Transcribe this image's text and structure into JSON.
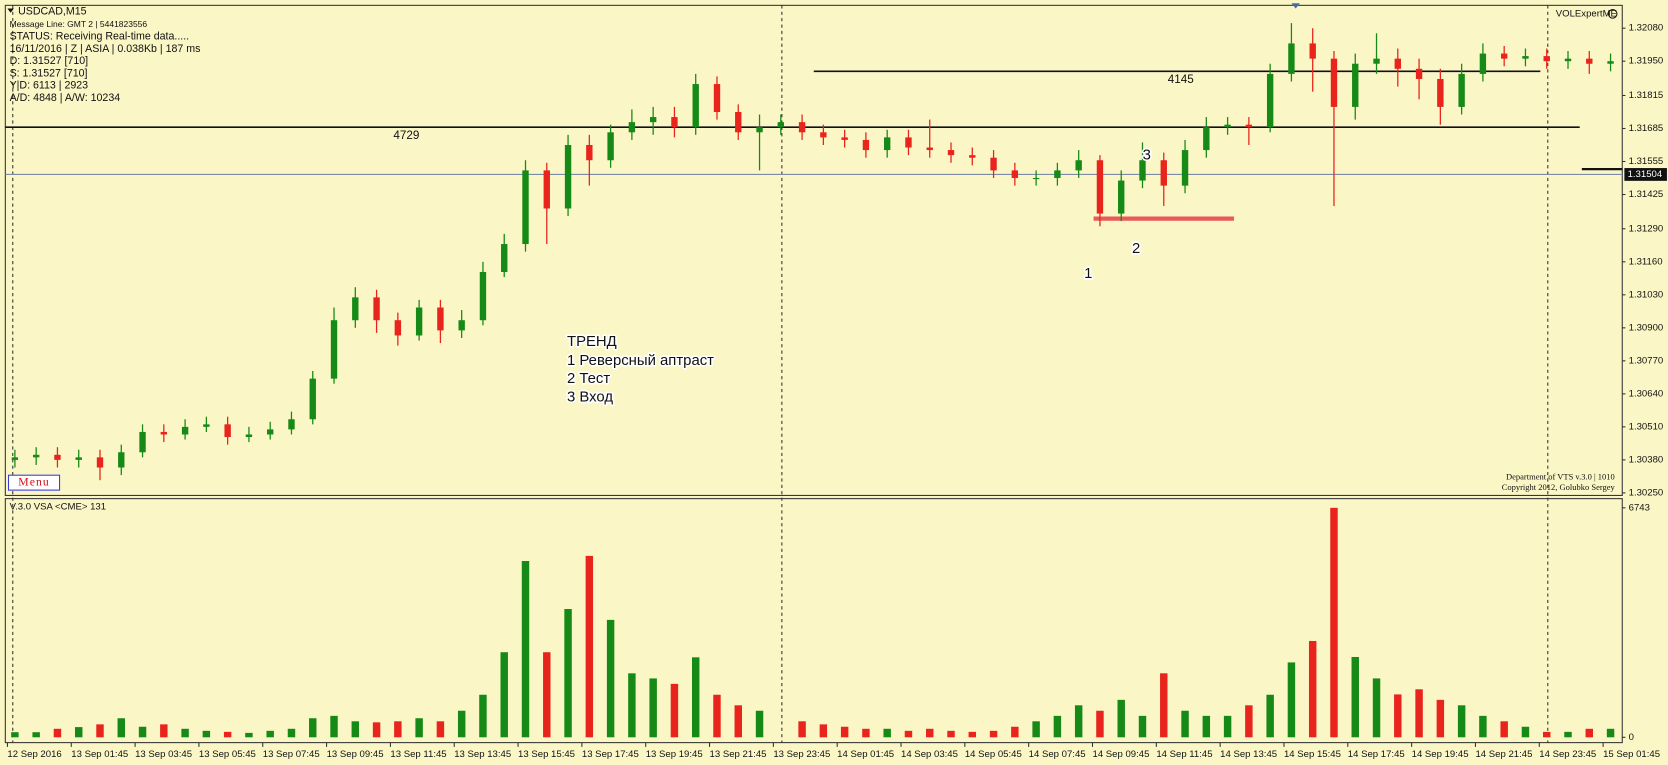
{
  "chart_data": {
    "type": "candlestick",
    "title": "USDCAD,M15",
    "info_lines": [
      "Message Line: GMT 2 | 5441823556",
      "STATUS:  Receiving Real-time data.....",
      "16/11/2016 | Z | ASIA | 0.038Kb | 187 ms",
      "D: 1.31527  [710]",
      "S: 1.31527  [710]",
      "Y|D: 6113 | 2923",
      "A/D: 4848 | A/W: 10234"
    ],
    "indicator_name": "VOLExpertME",
    "footer_lines": [
      "Department of VTS  v.3.0 | 1010",
      "Copyright 2012, Golubko Sergey"
    ],
    "menu_label": "Menu",
    "notes": [
      "ТРЕНД",
      "1  Реверсный аптраст",
      "2  Тест",
      "3  Вход"
    ],
    "markers": [
      "1",
      "2",
      "3"
    ],
    "up_color": "#168a16",
    "down_color": "#e8241c",
    "grid": false,
    "x_labels": [
      "12 Sep 2016",
      "13 Sep 01:45",
      "13 Sep 03:45",
      "13 Sep 05:45",
      "13 Sep 07:45",
      "13 Sep 09:45",
      "13 Sep 11:45",
      "13 Sep 13:45",
      "13 Sep 15:45",
      "13 Sep 17:45",
      "13 Sep 19:45",
      "13 Sep 21:45",
      "13 Sep 23:45",
      "14 Sep 01:45",
      "14 Sep 03:45",
      "14 Sep 05:45",
      "14 Sep 07:45",
      "14 Sep 09:45",
      "14 Sep 11:45",
      "14 Sep 13:45",
      "14 Sep 15:45",
      "14 Sep 17:45",
      "14 Sep 19:45",
      "14 Sep 21:45",
      "14 Sep 23:45",
      "15 Sep 01:45"
    ],
    "ylim": [
      1.3024,
      1.3217
    ],
    "yticks": [
      {
        "value": 1.3208,
        "label": "1.32080"
      },
      {
        "value": 1.3195,
        "label": "1.31950"
      },
      1.31815,
      1.31685,
      1.31555,
      1.31425,
      {
        "value": 1.3129,
        "label": "1.31290"
      },
      {
        "value": 1.3116,
        "label": "1.31160"
      },
      {
        "value": 1.3103,
        "label": "1.31030"
      },
      {
        "value": 1.309,
        "label": "1.30900"
      },
      {
        "value": 1.3077,
        "label": "1.30770"
      },
      {
        "value": 1.3064,
        "label": "1.30640"
      },
      {
        "value": 1.3051,
        "label": "1.30510"
      },
      {
        "value": 1.3038,
        "label": "1.30380"
      },
      {
        "value": 1.3025,
        "label": "1.30250"
      }
    ],
    "levels": [
      {
        "value": 1.3169,
        "label": "4729"
      },
      {
        "value": 1.3191,
        "label": "4145"
      }
    ],
    "current_price": {
      "value": 1.31504,
      "label": "1.31504"
    },
    "support_level": 1.3133,
    "open": [
      1.3038,
      1.3039,
      1.304,
      1.3038,
      1.3039,
      1.3035,
      1.3041,
      1.3049,
      1.3048,
      1.3051,
      1.3052,
      1.3047,
      1.3048,
      1.305,
      1.3054,
      1.307,
      1.3093,
      1.3102,
      1.3093,
      1.3087,
      1.3098,
      1.3089,
      1.3093,
      1.3112,
      1.3123,
      1.3152,
      1.3137,
      1.3162,
      1.3156,
      1.3167,
      1.3171,
      1.3173,
      1.3169,
      1.3186,
      1.3175,
      1.3167,
      1.3169,
      1.3171,
      1.3167,
      1.3165,
      1.3164,
      1.316,
      1.3165,
      1.3161,
      1.316,
      1.3158,
      1.3157,
      1.3152,
      1.3149,
      1.3149,
      1.3152,
      1.3156,
      1.3135,
      1.3148,
      1.3156,
      1.3146,
      1.316,
      1.3169,
      1.317,
      1.3169,
      1.319,
      1.3202,
      1.3196,
      1.3177,
      1.3194,
      1.3196,
      1.3192,
      1.3188,
      1.3177,
      1.319,
      1.3198,
      1.3196,
      1.3197,
      1.3195,
      1.3196,
      1.3194
    ],
    "high": [
      1.3042,
      1.3043,
      1.3043,
      1.3042,
      1.3042,
      1.3044,
      1.3052,
      1.3052,
      1.3054,
      1.3055,
      1.3055,
      1.3051,
      1.3053,
      1.3057,
      1.3073,
      1.3098,
      1.3106,
      1.3105,
      1.3096,
      1.3101,
      1.3101,
      1.3097,
      1.3116,
      1.3127,
      1.3156,
      1.3155,
      1.3166,
      1.3166,
      1.317,
      1.3176,
      1.3177,
      1.3177,
      1.319,
      1.3189,
      1.3178,
      1.3174,
      1.3174,
      1.3174,
      1.317,
      1.3168,
      1.3167,
      1.3168,
      1.3168,
      1.3172,
      1.3163,
      1.3161,
      1.316,
      1.3155,
      1.3152,
      1.3155,
      1.316,
      1.3158,
      1.3152,
      1.3163,
      1.3159,
      1.3164,
      1.3173,
      1.3173,
      1.3173,
      1.3194,
      1.321,
      1.3208,
      1.3199,
      1.3198,
      1.3206,
      1.32,
      1.3196,
      1.3192,
      1.3194,
      1.3202,
      1.3201,
      1.32,
      1.32,
      1.3199,
      1.3199,
      1.3198
    ],
    "low": [
      1.3035,
      1.3036,
      1.3035,
      1.3035,
      1.303,
      1.3032,
      1.3039,
      1.3045,
      1.3046,
      1.3049,
      1.3044,
      1.3045,
      1.3046,
      1.3048,
      1.3052,
      1.3068,
      1.309,
      1.3088,
      1.3083,
      1.3085,
      1.3084,
      1.3086,
      1.3091,
      1.311,
      1.312,
      1.3123,
      1.3134,
      1.3146,
      1.3153,
      1.3164,
      1.3166,
      1.3165,
      1.3166,
      1.3172,
      1.3164,
      1.3152,
      1.3166,
      1.3164,
      1.3162,
      1.3161,
      1.3157,
      1.3157,
      1.3158,
      1.3157,
      1.3155,
      1.3154,
      1.3149,
      1.3146,
      1.3146,
      1.3146,
      1.3149,
      1.313,
      1.3132,
      1.3145,
      1.3138,
      1.3143,
      1.3157,
      1.3166,
      1.3162,
      1.3167,
      1.3187,
      1.3183,
      1.3138,
      1.3172,
      1.319,
      1.3185,
      1.318,
      1.317,
      1.3174,
      1.3187,
      1.3193,
      1.3193,
      1.3192,
      1.3192,
      1.319,
      1.3191
    ],
    "close": [
      1.3039,
      1.304,
      1.3038,
      1.3039,
      1.3035,
      1.3041,
      1.3049,
      1.3048,
      1.3051,
      1.3052,
      1.3047,
      1.3048,
      1.305,
      1.3054,
      1.307,
      1.3093,
      1.3102,
      1.3093,
      1.3087,
      1.3098,
      1.3089,
      1.3093,
      1.3112,
      1.3123,
      1.3152,
      1.3137,
      1.3162,
      1.3156,
      1.3167,
      1.3171,
      1.3173,
      1.3169,
      1.3186,
      1.3175,
      1.3167,
      1.3169,
      1.3171,
      1.3167,
      1.3165,
      1.3164,
      1.316,
      1.3165,
      1.3161,
      1.316,
      1.3158,
      1.3157,
      1.3152,
      1.3149,
      1.3149,
      1.3152,
      1.3156,
      1.3135,
      1.3148,
      1.3156,
      1.3146,
      1.316,
      1.3169,
      1.317,
      1.3169,
      1.319,
      1.3202,
      1.3196,
      1.3177,
      1.3194,
      1.3196,
      1.3192,
      1.3188,
      1.3177,
      1.319,
      1.3198,
      1.3196,
      1.3197,
      1.3195,
      1.3196,
      1.3194,
      1.3195
    ],
    "volume": {
      "title": "V.3.0 VSA <CME> 131",
      "ylim": [
        0,
        6950
      ],
      "yticks": [
        0,
        6743
      ],
      "values": [
        150,
        150,
        250,
        300,
        380,
        560,
        310,
        380,
        250,
        190,
        160,
        130,
        190,
        250,
        560,
        630,
        470,
        440,
        470,
        560,
        470,
        780,
        1250,
        2500,
        5180,
        2500,
        3770,
        5330,
        3450,
        1880,
        1730,
        1570,
        2350,
        1250,
        940,
        780,
        0,
        470,
        380,
        310,
        250,
        250,
        190,
        250,
        190,
        160,
        190,
        310,
        470,
        630,
        940,
        780,
        1100,
        630,
        1880,
        780,
        630,
        630,
        940,
        1250,
        2200,
        2830,
        6743,
        2360,
        1730,
        1260,
        1410,
        1100,
        940,
        630,
        470,
        310,
        160,
        160,
        250,
        250
      ]
    }
  }
}
